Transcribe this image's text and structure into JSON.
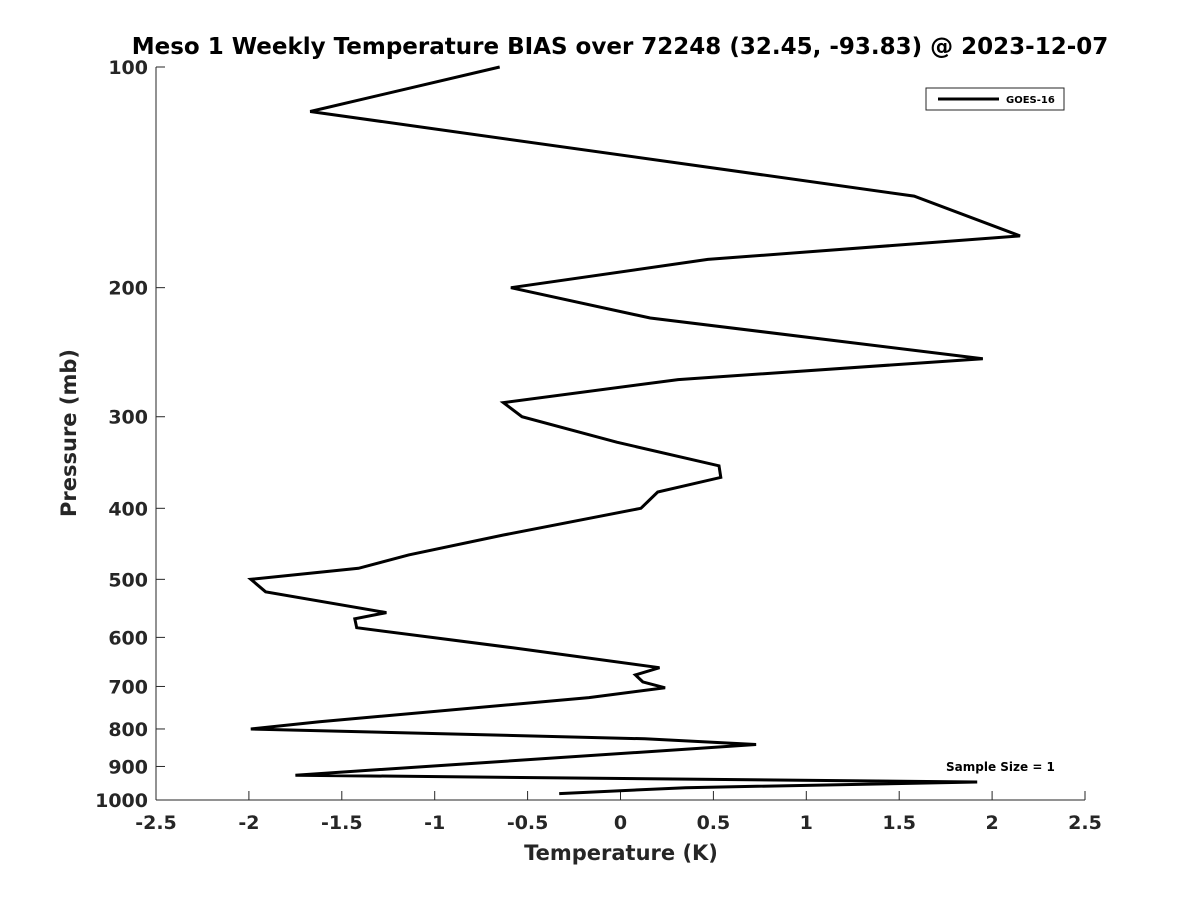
{
  "chart_data": {
    "type": "line",
    "title": "Meso 1 Weekly Temperature BIAS over 72248 (32.45, -93.83) @ 2023-12-07",
    "xlabel": "Temperature (K)",
    "ylabel": "Pressure (mb)",
    "xlim": [
      -2.5,
      2.5
    ],
    "ylim": [
      100,
      1000
    ],
    "y_scale": "log",
    "y_reversed": true,
    "xticks": [
      -2.5,
      -2,
      -1.5,
      -1,
      -0.5,
      0,
      0.5,
      1,
      1.5,
      2,
      2.5
    ],
    "xtick_labels": [
      "-2.5",
      "-2",
      "-1.5",
      "-1",
      "-0.5",
      "0",
      "0.5",
      "1",
      "1.5",
      "2",
      "2.5"
    ],
    "yticks": [
      100,
      200,
      300,
      400,
      500,
      600,
      700,
      800,
      900,
      1000
    ],
    "ytick_labels": [
      "100",
      "200",
      "300",
      "400",
      "500",
      "600",
      "700",
      "800",
      "900",
      "1000"
    ],
    "grid": false,
    "legend": {
      "position": "top-right",
      "entries": [
        "GOES-16"
      ]
    },
    "annotation": "Sample Size = 1",
    "series": [
      {
        "name": "GOES-16",
        "color": "#000000",
        "points": [
          [
            -0.65,
            100
          ],
          [
            -1.67,
            115
          ],
          [
            1.58,
            150
          ],
          [
            2.15,
            170
          ],
          [
            0.47,
            183
          ],
          [
            -0.59,
            200
          ],
          [
            0.16,
            220
          ],
          [
            1.95,
            250
          ],
          [
            0.31,
            267
          ],
          [
            -0.63,
            287
          ],
          [
            -0.53,
            300
          ],
          [
            -0.02,
            325
          ],
          [
            0.53,
            350
          ],
          [
            0.54,
            363
          ],
          [
            0.2,
            380
          ],
          [
            0.11,
            400
          ],
          [
            -0.63,
            435
          ],
          [
            -1.14,
            463
          ],
          [
            -1.41,
            483
          ],
          [
            -1.99,
            500
          ],
          [
            -1.91,
            520
          ],
          [
            -1.26,
            555
          ],
          [
            -1.43,
            566
          ],
          [
            -1.42,
            582
          ],
          [
            -0.58,
            620
          ],
          [
            0.21,
            660
          ],
          [
            0.08,
            675
          ],
          [
            0.12,
            690
          ],
          [
            0.24,
            703
          ],
          [
            -0.17,
            725
          ],
          [
            -1.62,
            782
          ],
          [
            -1.99,
            800
          ],
          [
            0.13,
            825
          ],
          [
            0.73,
            840
          ],
          [
            -1.75,
            925
          ],
          [
            1.92,
            945
          ],
          [
            0.35,
            962
          ],
          [
            -0.33,
            980
          ]
        ]
      }
    ]
  }
}
